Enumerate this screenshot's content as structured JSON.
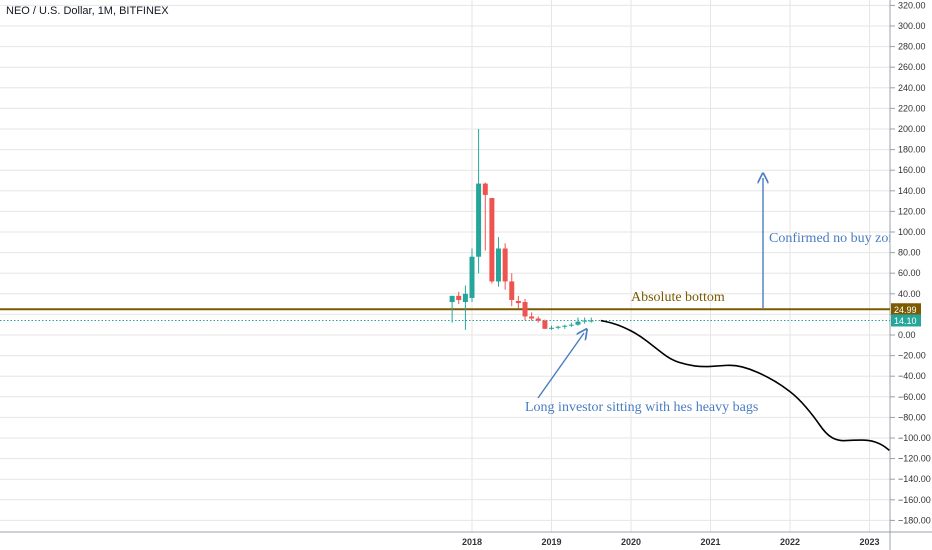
{
  "chart_data": {
    "type": "candlestick",
    "title": "NEO / U.S. Dollar, 1M, BITFINEX",
    "ylim": [
      -190,
      325
    ],
    "y_ticks": [
      320,
      300,
      280,
      260,
      240,
      220,
      200,
      180,
      160,
      140,
      120,
      100,
      80,
      60,
      40,
      20,
      0,
      -20,
      -40,
      -60,
      -80,
      -100,
      -120,
      -140,
      -160,
      -180
    ],
    "y_tick_labels": [
      "320.00",
      "300.00",
      "280.00",
      "260.00",
      "240.00",
      "220.00",
      "200.00",
      "180.00",
      "160.00",
      "140.00",
      "120.00",
      "100.00",
      "80.00",
      "60.00",
      "40.00",
      "20.00",
      "0.00",
      "−20.00",
      "−40.00",
      "−60.00",
      "−80.00",
      "−100.00",
      "−120.00",
      "−140.00",
      "−160.00",
      "−180.00"
    ],
    "x_ticks": [
      "2018",
      "2019",
      "2020",
      "2021",
      "2022",
      "2023"
    ],
    "candles": [
      {
        "t": 2017.75,
        "o": 32,
        "h": 38,
        "l": 12,
        "c": 38
      },
      {
        "t": 2017.833,
        "o": 38,
        "h": 42,
        "l": 30,
        "c": 34
      },
      {
        "t": 2017.917,
        "o": 32,
        "h": 48,
        "l": 5,
        "c": 40
      },
      {
        "t": 2018.0,
        "o": 36,
        "h": 84,
        "l": 32,
        "c": 76
      },
      {
        "t": 2018.083,
        "o": 76,
        "h": 200,
        "l": 60,
        "c": 147
      },
      {
        "t": 2018.167,
        "o": 147,
        "h": 148,
        "l": 82,
        "c": 136
      },
      {
        "t": 2018.25,
        "o": 133,
        "h": 133,
        "l": 50,
        "c": 52
      },
      {
        "t": 2018.333,
        "o": 52,
        "h": 95,
        "l": 47,
        "c": 84
      },
      {
        "t": 2018.417,
        "o": 84,
        "h": 89,
        "l": 44,
        "c": 52
      },
      {
        "t": 2018.5,
        "o": 52,
        "h": 60,
        "l": 28,
        "c": 34
      },
      {
        "t": 2018.583,
        "o": 33,
        "h": 38,
        "l": 26,
        "c": 31
      },
      {
        "t": 2018.667,
        "o": 32,
        "h": 35,
        "l": 14,
        "c": 18
      },
      {
        "t": 2018.75,
        "o": 18,
        "h": 22,
        "l": 14,
        "c": 16
      },
      {
        "t": 2018.833,
        "o": 16,
        "h": 18,
        "l": 12,
        "c": 14
      },
      {
        "t": 2018.917,
        "o": 14,
        "h": 15,
        "l": 6,
        "c": 6
      },
      {
        "t": 2019.0,
        "o": 6,
        "h": 9,
        "l": 5,
        "c": 7
      },
      {
        "t": 2019.083,
        "o": 7,
        "h": 9,
        "l": 5.5,
        "c": 8
      },
      {
        "t": 2019.167,
        "o": 8,
        "h": 10,
        "l": 6,
        "c": 9
      },
      {
        "t": 2019.25,
        "o": 9,
        "h": 12,
        "l": 8,
        "c": 10
      },
      {
        "t": 2019.333,
        "o": 10,
        "h": 17,
        "l": 9,
        "c": 13
      },
      {
        "t": 2019.417,
        "o": 13,
        "h": 17,
        "l": 11,
        "c": 14
      },
      {
        "t": 2019.5,
        "o": 14,
        "h": 17,
        "l": 12,
        "c": 14.1
      }
    ],
    "projection_path": [
      [
        2019.62,
        14
      ],
      [
        2019.75,
        12
      ],
      [
        2019.9,
        8
      ],
      [
        2020.1,
        0
      ],
      [
        2020.3,
        -12
      ],
      [
        2020.5,
        -24
      ],
      [
        2020.7,
        -29
      ],
      [
        2020.9,
        -31
      ],
      [
        2021.1,
        -30
      ],
      [
        2021.3,
        -29
      ],
      [
        2021.5,
        -33
      ],
      [
        2021.7,
        -40
      ],
      [
        2021.9,
        -49
      ],
      [
        2022.1,
        -61
      ],
      [
        2022.3,
        -79
      ],
      [
        2022.45,
        -96
      ],
      [
        2022.6,
        -103
      ],
      [
        2022.8,
        -102
      ],
      [
        2023.0,
        -102
      ],
      [
        2023.15,
        -106
      ],
      [
        2023.25,
        -112
      ]
    ],
    "levels": [
      {
        "value": 24.99,
        "label": "24.99",
        "color": "#7b5a00"
      },
      {
        "value": 14.1,
        "label": "14.10",
        "color": "#26a69a"
      }
    ],
    "annotations": [
      {
        "text": "Absolute bottom",
        "color": "#7b5a00"
      },
      {
        "text": "Confirmed no buy zone",
        "color": "#4a7cc2"
      },
      {
        "text": "Long investor sitting with hes heavy bags",
        "color": "#4a7cc2"
      }
    ],
    "colors": {
      "up": "#26a69a",
      "down": "#ef5350",
      "grid": "#e6e6e6",
      "projection": "#000000"
    }
  }
}
